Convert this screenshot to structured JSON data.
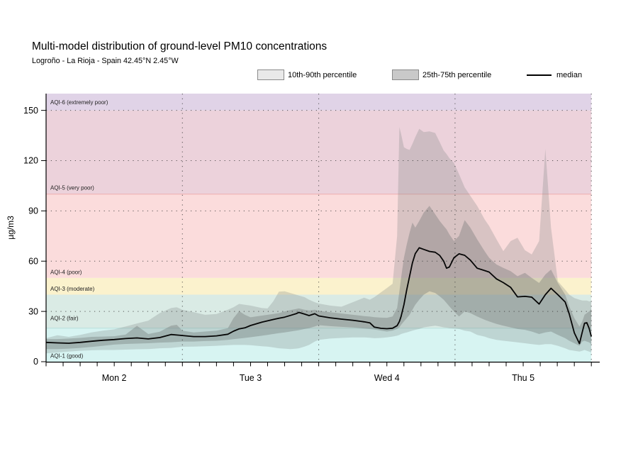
{
  "header": {
    "title": "Multi-model distribution of ground-level PM10 concentrations",
    "subtitle": "Logroño - La Rioja - Spain 42.45°N 2.45°W"
  },
  "legend": {
    "p10_90_label": "10th-90th percentile",
    "p25_75_label": "25th-75th percentile",
    "median_label": "median",
    "p10_90_swatch_color": "#e9e9e9",
    "p25_75_swatch_color": "#c9c9c9",
    "median_color": "#000000"
  },
  "chart_data": {
    "type": "area",
    "title": "Multi-model distribution of ground-level PM10 concentrations",
    "subtitle": "Logroño - La Rioja - Spain 42.45°N 2.45°W",
    "ylabel": "µg/m3",
    "ylim": [
      0,
      160
    ],
    "yticks": [
      0,
      30,
      60,
      90,
      120,
      150
    ],
    "ygrid": [
      30,
      60,
      90,
      120,
      150
    ],
    "x_unit": "hours from Mon 00:00",
    "xlim": [
      0,
      96
    ],
    "minor_tick_step_hours": 3,
    "day_boundaries_hours": [
      24,
      48,
      72,
      96
    ],
    "day_labels": [
      {
        "label": "Mon 2",
        "hour": 12
      },
      {
        "label": "Tue 3",
        "hour": 36
      },
      {
        "label": "Wed 4",
        "hour": 60
      },
      {
        "label": "Thu 5",
        "hour": 84
      }
    ],
    "aqi_bands": [
      {
        "label": "AQI-1 (good)",
        "min": 0,
        "max": 20,
        "color": "#d7f4f2",
        "label_v": 3.5
      },
      {
        "label": "AQI-2 (fair)",
        "min": 20,
        "max": 40,
        "color": "#daebe5",
        "label_v": 26
      },
      {
        "label": "AQI-3 (moderate)",
        "min": 40,
        "max": 50,
        "color": "#fbf2cd",
        "label_v": 43.5
      },
      {
        "label": "AQI-4 (poor)",
        "min": 50,
        "max": 100,
        "color": "#fbdcdc",
        "label_v": 53.5
      },
      {
        "label": "AQI-5 (very poor)",
        "min": 100,
        "max": 150,
        "color": "#ecd2db",
        "label_v": 104
      },
      {
        "label": "AQI-6 (extremely poor)",
        "min": 150,
        "max": 160,
        "color": "#e0d3e7",
        "label_v": 155
      }
    ],
    "boundary_lines": [
      {
        "v": 20,
        "color": "#b7dfdb"
      },
      {
        "v": 100,
        "color": "#eeaeae"
      }
    ],
    "colors": {
      "p10_90_fill": "rgba(123,128,128,0.27)",
      "p25_75_fill": "rgba(100,105,105,0.33)",
      "median": "#050505",
      "gridline": "#3c3c3c",
      "axis": "#000000"
    },
    "series": {
      "hours": [
        0,
        2,
        4,
        6,
        8,
        10,
        12,
        14,
        16,
        18,
        20,
        22,
        23,
        24,
        26,
        28,
        30,
        32,
        33,
        34,
        35,
        36,
        38,
        39,
        40,
        41,
        42,
        43,
        44,
        44.5,
        45.5,
        46.3,
        47.3,
        48,
        50,
        52,
        54,
        56,
        57,
        57.8,
        59,
        60,
        61,
        61.8,
        62.2,
        62.5,
        63,
        63.5,
        64,
        64.5,
        65,
        65.7,
        66.5,
        67.5,
        68.5,
        69.3,
        70,
        70.5,
        71,
        71.8,
        72.7,
        73.7,
        74.7,
        75.9,
        77.2,
        78,
        79.3,
        80.5,
        81.8,
        83,
        84.3,
        85.5,
        86.8,
        87.9,
        88.9,
        90.1,
        91.4,
        92.1,
        93,
        93.9,
        94.4,
        94.8,
        95.2,
        95.6,
        96
      ],
      "median": [
        11.5,
        11.2,
        11.0,
        11.5,
        12.2,
        12.8,
        13.2,
        13.8,
        14.2,
        13.6,
        14.4,
        16.2,
        15.9,
        15.6,
        15.0,
        15.0,
        15.4,
        16.4,
        18.2,
        19.6,
        20.2,
        21.6,
        23.6,
        24.4,
        25.2,
        25.9,
        26.6,
        27.6,
        28.6,
        29.4,
        28.4,
        27.5,
        28.6,
        27.3,
        26.2,
        25.4,
        24.7,
        23.8,
        23.2,
        20.6,
        19.9,
        19.7,
        20.0,
        21.5,
        24.0,
        27.0,
        34.0,
        43.0,
        51.0,
        59.0,
        64.5,
        68.0,
        67.0,
        65.8,
        65.3,
        63.4,
        60.0,
        55.8,
        56.5,
        62.0,
        64.4,
        63.5,
        60.6,
        55.8,
        54.4,
        53.5,
        49.4,
        47.2,
        44.3,
        38.7,
        39.0,
        38.5,
        34.4,
        40.0,
        43.8,
        40.0,
        35.6,
        28.5,
        17.2,
        10.8,
        17.7,
        23.0,
        23.3,
        20.0,
        15.0
      ],
      "p25": [
        7.5,
        7.5,
        7.8,
        8.2,
        8.8,
        9.5,
        10.2,
        10.6,
        10.8,
        11.0,
        11.4,
        11.6,
        11.8,
        12.0,
        12.0,
        12.3,
        12.5,
        13.0,
        13.4,
        13.8,
        14.2,
        14.6,
        15.5,
        16.0,
        16.5,
        17.0,
        17.5,
        18.0,
        18.5,
        18.8,
        19.5,
        20.0,
        21.0,
        21.8,
        21.2,
        20.8,
        20.4,
        19.8,
        19.5,
        19.2,
        18.5,
        18.0,
        18.5,
        19.5,
        20.5,
        22.0,
        24.0,
        26.0,
        28.0,
        31.0,
        34.0,
        37.0,
        40.0,
        42.0,
        41.0,
        39.0,
        37.0,
        35.0,
        33.0,
        30.0,
        27.0,
        30.0,
        29.0,
        27.0,
        25.0,
        24.0,
        22.5,
        21.5,
        20.5,
        19.5,
        19.0,
        18.0,
        16.5,
        17.5,
        18.0,
        16.0,
        14.0,
        12.5,
        11.0,
        9.5,
        12.0,
        12.5,
        12.0,
        11.5,
        10.4
      ],
      "p75": [
        13.5,
        13.5,
        13.8,
        14.2,
        14.8,
        15.0,
        15.2,
        16.2,
        21.4,
        16.5,
        17.9,
        21.5,
        22.0,
        18.5,
        17.5,
        18.0,
        18.5,
        20.0,
        26.0,
        30.2,
        28.0,
        26.5,
        27.5,
        28.0,
        28.5,
        29.0,
        30.0,
        30.8,
        31.4,
        31.8,
        31.0,
        30.5,
        31.0,
        30.4,
        29.5,
        28.8,
        28.0,
        27.2,
        26.9,
        26.6,
        26.3,
        26.2,
        27.0,
        32.0,
        42.0,
        50.0,
        62.0,
        70.0,
        77.0,
        83.0,
        80.0,
        84.0,
        89.0,
        93.0,
        88.0,
        84.0,
        81.0,
        79.0,
        76.0,
        72.0,
        75.0,
        84.5,
        80.0,
        73.0,
        66.0,
        62.0,
        58.0,
        56.0,
        54.0,
        51.0,
        53.0,
        50.0,
        47.0,
        52.0,
        55.0,
        47.0,
        40.0,
        33.0,
        26.0,
        21.0,
        24.0,
        28.0,
        29.0,
        30.0,
        31.5
      ],
      "p10": [
        5.0,
        5.5,
        6.0,
        6.5,
        6.8,
        7.0,
        7.0,
        7.2,
        7.4,
        7.5,
        8.0,
        8.2,
        8.6,
        8.9,
        9.0,
        9.2,
        9.5,
        9.8,
        10.0,
        10.0,
        10.0,
        9.8,
        9.2,
        9.0,
        8.5,
        8.0,
        7.8,
        7.5,
        7.8,
        8.0,
        9.0,
        10.0,
        12.0,
        13.0,
        13.8,
        14.2,
        14.5,
        14.5,
        14.3,
        14.0,
        14.2,
        14.5,
        15.0,
        15.5,
        16.0,
        16.5,
        17.0,
        17.5,
        18.0,
        18.5,
        19.0,
        19.5,
        20.5,
        21.0,
        21.5,
        21.0,
        20.5,
        20.3,
        20.0,
        19.8,
        19.5,
        18.5,
        18.0,
        16.0,
        15.0,
        14.0,
        13.0,
        12.5,
        12.0,
        11.5,
        11.0,
        10.5,
        10.0,
        10.5,
        10.5,
        9.5,
        8.0,
        7.0,
        6.5,
        6.0,
        6.5,
        7.0,
        6.5,
        6.0,
        5.5
      ],
      "p90": [
        14.0,
        15.8,
        14.8,
        16.0,
        17.5,
        18.5,
        19.3,
        21.0,
        22.8,
        24.5,
        29.0,
        32.0,
        32.5,
        31.0,
        29.5,
        28.0,
        28.5,
        31.0,
        32.5,
        34.5,
        34.0,
        33.5,
        32.0,
        31.8,
        36.0,
        41.8,
        42.0,
        41.0,
        40.0,
        39.5,
        38.5,
        37.0,
        35.5,
        34.7,
        33.5,
        32.8,
        35.5,
        38.2,
        37.0,
        38.5,
        41.5,
        44.0,
        46.5,
        75.0,
        140.0,
        136.0,
        128.0,
        127.0,
        126.4,
        130.0,
        134.0,
        139.0,
        137.0,
        137.5,
        136.5,
        131.0,
        126.0,
        124.0,
        121.5,
        118.6,
        112.0,
        104.0,
        99.0,
        93.0,
        85.0,
        81.0,
        73.0,
        66.0,
        72.0,
        74.0,
        66.5,
        64.0,
        72.0,
        127.0,
        80.0,
        48.0,
        43.0,
        40.0,
        38.0,
        37.0,
        36.5,
        36.5,
        36.5,
        36.0,
        36.0
      ]
    }
  }
}
